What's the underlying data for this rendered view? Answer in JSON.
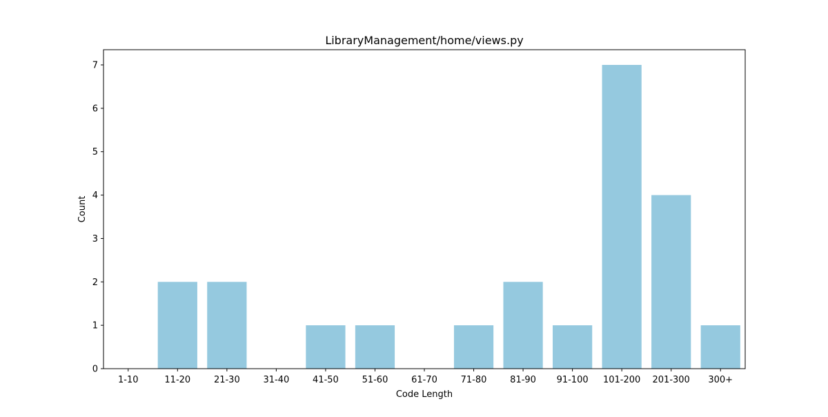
{
  "chart_data": {
    "type": "bar",
    "title": "LibraryManagement/home/views.py",
    "xlabel": "Code Length",
    "ylabel": "Count",
    "categories": [
      "1-10",
      "11-20",
      "21-30",
      "31-40",
      "41-50",
      "51-60",
      "61-70",
      "71-80",
      "81-90",
      "91-100",
      "101-200",
      "201-300",
      "300+"
    ],
    "values": [
      0,
      2,
      2,
      0,
      1,
      1,
      0,
      1,
      2,
      1,
      7,
      4,
      1
    ],
    "ylim": [
      0,
      7.35
    ],
    "yticks": [
      "0",
      "1",
      "2",
      "3",
      "4",
      "5",
      "6",
      "7"
    ],
    "grid": false,
    "bar_color": "#95c9df"
  }
}
